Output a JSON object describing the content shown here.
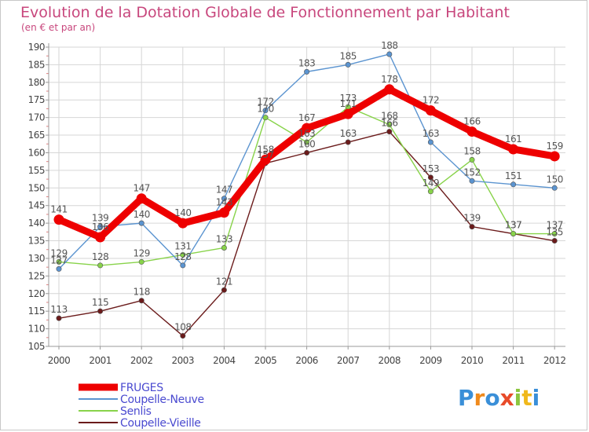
{
  "chart_data": {
    "type": "line",
    "title": "Evolution de la Dotation Globale de Fonctionnement par Habitant",
    "subtitle": "(en € et par an)",
    "categories": [
      "2000",
      "2001",
      "2002",
      "2003",
      "2004",
      "2005",
      "2006",
      "2007",
      "2008",
      "2009",
      "2010",
      "2011",
      "2012"
    ],
    "ylim": [
      105,
      190
    ],
    "yticks": [
      "105",
      "110",
      "115",
      "120",
      "125",
      "130",
      "135",
      "140",
      "145",
      "150",
      "155",
      "160",
      "165",
      "170",
      "175",
      "180",
      "185",
      "190"
    ],
    "series": [
      {
        "name": "FRUGES",
        "color": "#ee0000",
        "values": [
          141,
          136,
          147,
          140,
          143,
          158,
          167,
          171,
          178,
          172,
          166,
          161,
          159
        ],
        "labels": [
          "141",
          "136",
          "147",
          "140",
          "143",
          "158",
          "167",
          "171",
          "178",
          "172",
          "166",
          "161",
          "159"
        ]
      },
      {
        "name": "Coupelle-Neuve",
        "color": "#5b94d0",
        "values": [
          127,
          139,
          140,
          128,
          147,
          172,
          183,
          185,
          188,
          163,
          152,
          151,
          150
        ],
        "labels": [
          "127",
          "139",
          "140",
          "128",
          "147",
          "172",
          "183",
          "185",
          "188",
          "163",
          "152",
          "151",
          "150"
        ]
      },
      {
        "name": "Senlis",
        "color": "#88d34a",
        "values": [
          129,
          128,
          129,
          131,
          133,
          170,
          163,
          173,
          168,
          149,
          158,
          137,
          137
        ],
        "labels": [
          "129",
          "128",
          "129",
          "131",
          "133",
          "170",
          "163",
          "173",
          "168",
          "149",
          "158",
          "137",
          "137"
        ]
      },
      {
        "name": "Coupelle-Vieille",
        "color": "#6b1b1b",
        "values": [
          113,
          115,
          118,
          108,
          121,
          157,
          160,
          163,
          166,
          153,
          139,
          137,
          135
        ],
        "labels": [
          "113",
          "115",
          "118",
          "108",
          "121",
          "157",
          "160",
          "163",
          "166",
          "153",
          "139",
          "137",
          "135"
        ]
      }
    ]
  },
  "logo": {
    "text": "Proxiti"
  }
}
